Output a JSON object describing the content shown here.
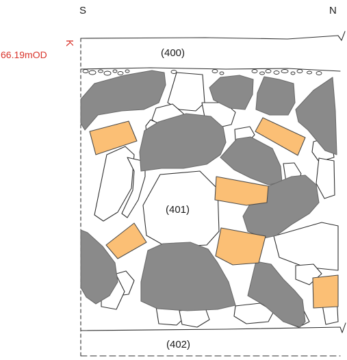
{
  "orientation": {
    "left": "S",
    "right": "N"
  },
  "datum": {
    "marker": "K",
    "level": "66.19mOD"
  },
  "contexts": {
    "upper": "(400)",
    "middle": "(401)",
    "lower": "(402)"
  },
  "colors": {
    "stone_dark": "#8a8a8a",
    "brick": "#fbbf75",
    "outline": "#3a3a3a",
    "datum_text": "#d9342b"
  }
}
